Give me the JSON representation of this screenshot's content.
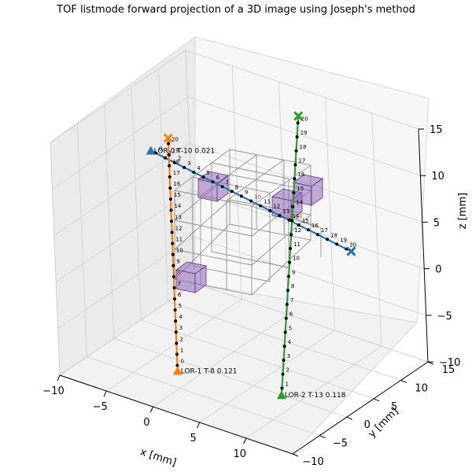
{
  "chart_data": {
    "type": "scatter",
    "title": "TOF listmode forward projection of a 3D image using Joseph's method",
    "xlabel": "x [mm]",
    "ylabel": "y [mm]",
    "zlabel": "z [mm]",
    "xlim": [
      -10,
      15
    ],
    "ylim": [
      -10,
      15
    ],
    "zlim": [
      -10,
      15
    ],
    "x_ticks": [
      "−10",
      "−5",
      "0",
      "5",
      "10"
    ],
    "y_ticks": [
      "−10",
      "−5",
      "0",
      "5",
      "10",
      "15"
    ],
    "z_ticks": [
      "−10",
      "−5",
      "0",
      "5",
      "10",
      "15"
    ],
    "grid": true,
    "series": [
      {
        "name": "LOR-0",
        "annotation": "LOR-0 T-10 0.021",
        "color": "#1f77b4",
        "start": [
          -10,
          8,
          7
        ],
        "end": [
          15,
          2,
          7
        ],
        "tof_bins": [
          "0",
          "1",
          "2",
          "3",
          "4",
          "5",
          "6",
          "7",
          "8",
          "9",
          "10",
          "11",
          "12",
          "13",
          "14",
          "15",
          "16",
          "17",
          "18",
          "19",
          "20"
        ],
        "highlight_bin": "10"
      },
      {
        "name": "LOR-1",
        "annotation": "LOR-1 T-8 0.121",
        "color": "#ff7f0e",
        "start": [
          -2,
          -2,
          -10
        ],
        "end": [
          -2,
          -2,
          15
        ],
        "tof_bins": [
          "0",
          "1",
          "2",
          "3",
          "4",
          "5",
          "6",
          "7",
          "8",
          "9",
          "10",
          "11",
          "12",
          "13",
          "14",
          "15",
          "16",
          "17",
          "18",
          "19",
          "20"
        ],
        "highlight_bin": "8"
      },
      {
        "name": "LOR-2",
        "annotation": "LOR-2 T-13 0.118",
        "color": "#2ca02c",
        "start": [
          8,
          0,
          -10
        ],
        "end": [
          5,
          10,
          15
        ],
        "tof_bins": [
          "1",
          "2",
          "3",
          "4",
          "5",
          "6",
          "7",
          "8",
          "9",
          "10",
          "11",
          "12",
          "13",
          "14",
          "15",
          "16",
          "17",
          "18",
          "19",
          "20"
        ],
        "highlight_bin": "13"
      }
    ]
  }
}
